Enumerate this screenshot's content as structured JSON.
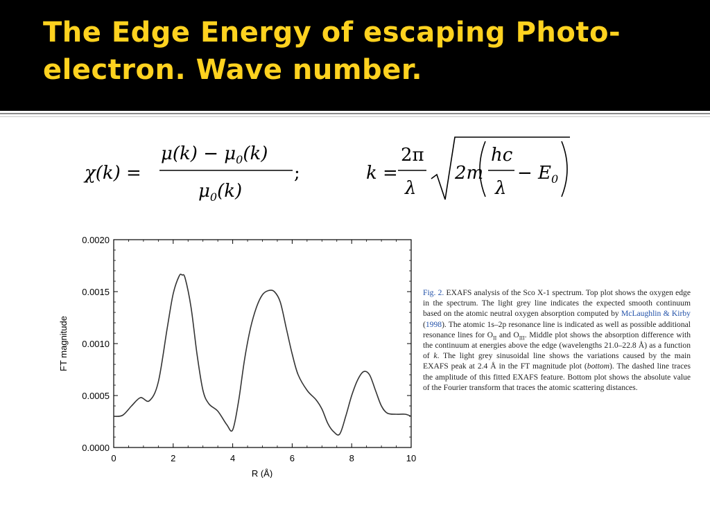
{
  "slide": {
    "title_line1": "The Edge Energy of escaping Photo-",
    "title_line2": "electron. Wave number.",
    "title_color": "#ffd21f",
    "header_bg": "#000000"
  },
  "formulas": {
    "chi": {
      "lhs": "χ(k) =",
      "numerator": "μ(k) − μ0(k)",
      "denominator": "μ0(k)",
      "trailing": ";"
    },
    "k": {
      "lhs": "k =",
      "frac_num": "2π",
      "frac_den": "λ",
      "radicand_prefix": "2m",
      "inner_num": "hc",
      "inner_den": "λ",
      "minus_term": "− E0"
    }
  },
  "caption": {
    "label": "Fig. 2.",
    "p1": " EXAFS analysis of the Sco X-1 spectrum. Top plot shows the oxygen edge in the spectrum. The light grey line indicates the expected smooth continuum based on the atomic neutral oxygen absorption computed by ",
    "citation_authors": "McLaughlin & Kirby",
    "citation_open": " (",
    "citation_year": "1998",
    "p2": "). The atomic 1s–2p resonance line is indicated as well as possible additional resonance lines for O",
    "sub1": "II",
    "p3": " and O",
    "sub2": "III",
    "p4": ". Middle plot shows the absorption difference with the continuum at energies above the edge (wavelengths 21.0–22.8 Å) as a function of ",
    "k_italic": "k",
    "p5": ". The light grey sinusoidal line shows the variations caused by the main EXAFS peak at 2.4 Å in the FT magnitude plot (",
    "bottom_italic": "bottom",
    "p6": "). The dashed line traces the amplitude of this fitted EXAFS feature. Bottom plot shows the absolute value of the Fourier transform that traces the atomic scattering distances."
  },
  "chart_data": {
    "type": "line",
    "xlabel": "R (Å)",
    "ylabel": "FT magnitude",
    "xlim": [
      0,
      10
    ],
    "ylim": [
      0,
      0.002
    ],
    "x_ticks": [
      0,
      2,
      4,
      6,
      8,
      10
    ],
    "x_tick_labels": [
      "0",
      "2",
      "4",
      "6",
      "8",
      "10"
    ],
    "y_ticks": [
      0,
      0.0005,
      0.001,
      0.0015,
      0.002
    ],
    "y_tick_labels": [
      "0.0000",
      "0.0005",
      "0.0010",
      "0.0015",
      "0.0020"
    ],
    "x": [
      0,
      0.3,
      0.6,
      0.9,
      1.2,
      1.5,
      1.8,
      2.0,
      2.2,
      2.3,
      2.4,
      2.6,
      2.8,
      3.0,
      3.2,
      3.5,
      3.8,
      4.0,
      4.2,
      4.4,
      4.6,
      4.8,
      5.0,
      5.2,
      5.4,
      5.6,
      5.8,
      6.0,
      6.2,
      6.5,
      6.8,
      7.0,
      7.2,
      7.4,
      7.6,
      7.8,
      8.0,
      8.2,
      8.4,
      8.6,
      8.8,
      9.0,
      9.2,
      9.5,
      9.8,
      10.0
    ],
    "y": [
      0.0003,
      0.00031,
      0.0004,
      0.00048,
      0.00045,
      0.00063,
      0.00115,
      0.00148,
      0.00165,
      0.00166,
      0.00163,
      0.00135,
      0.0009,
      0.00055,
      0.00042,
      0.00035,
      0.00022,
      0.00017,
      0.00045,
      0.00085,
      0.00115,
      0.00135,
      0.00147,
      0.00151,
      0.0015,
      0.0014,
      0.00115,
      0.0009,
      0.0007,
      0.00055,
      0.00046,
      0.00037,
      0.00023,
      0.00015,
      0.00013,
      0.0003,
      0.0005,
      0.00065,
      0.00073,
      0.0007,
      0.00055,
      0.0004,
      0.00033,
      0.00032,
      0.00032,
      0.0003
    ],
    "grid": false,
    "line_color": "#333333"
  }
}
